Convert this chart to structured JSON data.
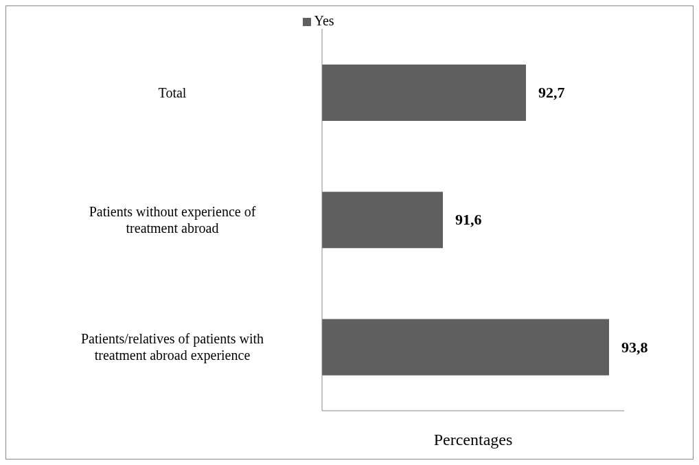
{
  "chart_data": {
    "type": "bar",
    "orientation": "horizontal",
    "categories": [
      "Total",
      "Patients without experience of treatment abroad",
      "Patients/relatives of patients with treatment abroad experience"
    ],
    "series": [
      {
        "name": "Yes",
        "color": "#5f5f5f",
        "values": [
          92.7,
          91.6,
          93.8
        ],
        "value_labels": [
          "92,7",
          "91,6",
          "93,8"
        ]
      }
    ],
    "xlabel": "Percentages",
    "xlim": [
      90,
      94
    ],
    "tick_labels": "y",
    "legend": "top"
  }
}
